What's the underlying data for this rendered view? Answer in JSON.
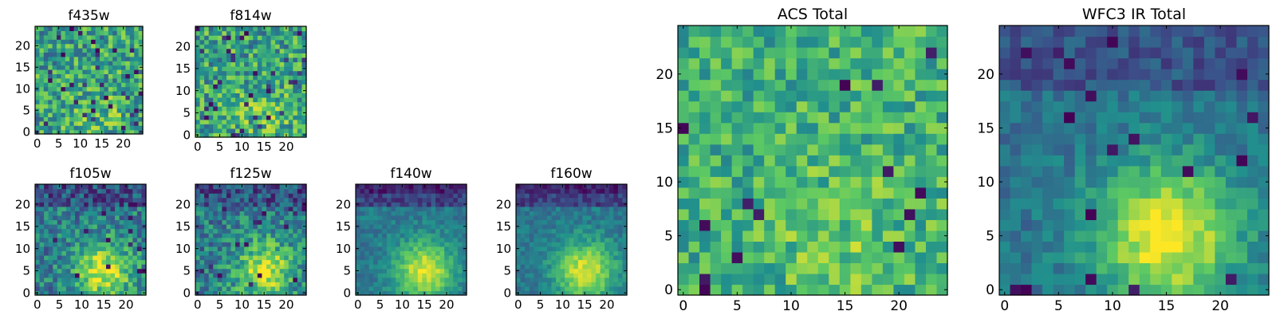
{
  "figure": {
    "grid_size": 25,
    "colormap": [
      "#440154",
      "#3b528b",
      "#21908d",
      "#5dc963",
      "#fde725"
    ]
  },
  "chart_data": [
    {
      "type": "heatmap",
      "title": "f435w",
      "xticks": [
        "0",
        "5",
        "10",
        "15",
        "20"
      ],
      "yticks": [
        "0",
        "5",
        "10",
        "15",
        "20"
      ],
      "xlim": [
        -0.5,
        24.5
      ],
      "ylim": [
        -0.5,
        24.5
      ],
      "grid": false,
      "pattern": "noise",
      "seed": 11
    },
    {
      "type": "heatmap",
      "title": "f814w",
      "xticks": [
        "0",
        "5",
        "10",
        "15",
        "20"
      ],
      "yticks": [
        "0",
        "5",
        "10",
        "15",
        "20"
      ],
      "xlim": [
        -0.5,
        24.5
      ],
      "ylim": [
        -0.5,
        24.5
      ],
      "grid": false,
      "pattern": "noise",
      "seed": 23
    },
    {
      "type": "heatmap",
      "title": "f105w",
      "xticks": [
        "0",
        "5",
        "10",
        "15",
        "20"
      ],
      "yticks": [
        "0",
        "5",
        "10",
        "15",
        "20"
      ],
      "xlim": [
        -0.5,
        24.5
      ],
      "ylim": [
        -0.5,
        24.5
      ],
      "grid": false,
      "pattern": "ir",
      "seed": 37
    },
    {
      "type": "heatmap",
      "title": "f125w",
      "xticks": [
        "0",
        "5",
        "10",
        "15",
        "20"
      ],
      "yticks": [
        "0",
        "5",
        "10",
        "15",
        "20"
      ],
      "xlim": [
        -0.5,
        24.5
      ],
      "ylim": [
        -0.5,
        24.5
      ],
      "grid": false,
      "pattern": "ir",
      "seed": 41
    },
    {
      "type": "heatmap",
      "title": "f140w",
      "xticks": [
        "0",
        "5",
        "10",
        "15",
        "20"
      ],
      "yticks": [
        "0",
        "5",
        "10",
        "15",
        "20"
      ],
      "xlim": [
        -0.5,
        24.5
      ],
      "ylim": [
        -0.5,
        24.5
      ],
      "grid": false,
      "pattern": "ir-smooth",
      "seed": 53
    },
    {
      "type": "heatmap",
      "title": "f160w",
      "xticks": [
        "0",
        "5",
        "10",
        "15",
        "20"
      ],
      "yticks": [
        "0",
        "5",
        "10",
        "15",
        "20"
      ],
      "xlim": [
        -0.5,
        24.5
      ],
      "ylim": [
        -0.5,
        24.5
      ],
      "grid": false,
      "pattern": "ir-smooth",
      "seed": 67
    },
    {
      "type": "heatmap",
      "title": "ACS Total",
      "xticks": [
        "0",
        "5",
        "10",
        "15",
        "20"
      ],
      "yticks": [
        "0",
        "5",
        "10",
        "15",
        "20"
      ],
      "xlim": [
        -0.5,
        24.5
      ],
      "ylim": [
        -0.5,
        24.5
      ],
      "grid": false,
      "pattern": "acs-total",
      "seed": 79
    },
    {
      "type": "heatmap",
      "title": "WFC3 IR Total",
      "xticks": [
        "0",
        "5",
        "10",
        "15",
        "20"
      ],
      "yticks": [
        "0",
        "5",
        "10",
        "15",
        "20"
      ],
      "xlim": [
        -0.5,
        24.5
      ],
      "ylim": [
        -0.5,
        24.5
      ],
      "grid": false,
      "pattern": "ir-total",
      "seed": 97
    }
  ]
}
